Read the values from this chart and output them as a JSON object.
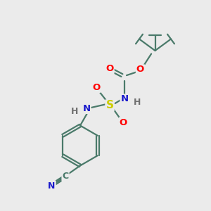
{
  "bg_color": "#ebebeb",
  "bond_color": "#4a7a6a",
  "atom_colors": {
    "O": "#ff0000",
    "N": "#1a1acc",
    "S": "#cccc00",
    "C": "#4a7a6a",
    "H": "#707070"
  },
  "bond_lw": 1.6,
  "font_size": 9.5,
  "layout": {
    "xlim": [
      0,
      10
    ],
    "ylim": [
      0,
      10
    ]
  }
}
